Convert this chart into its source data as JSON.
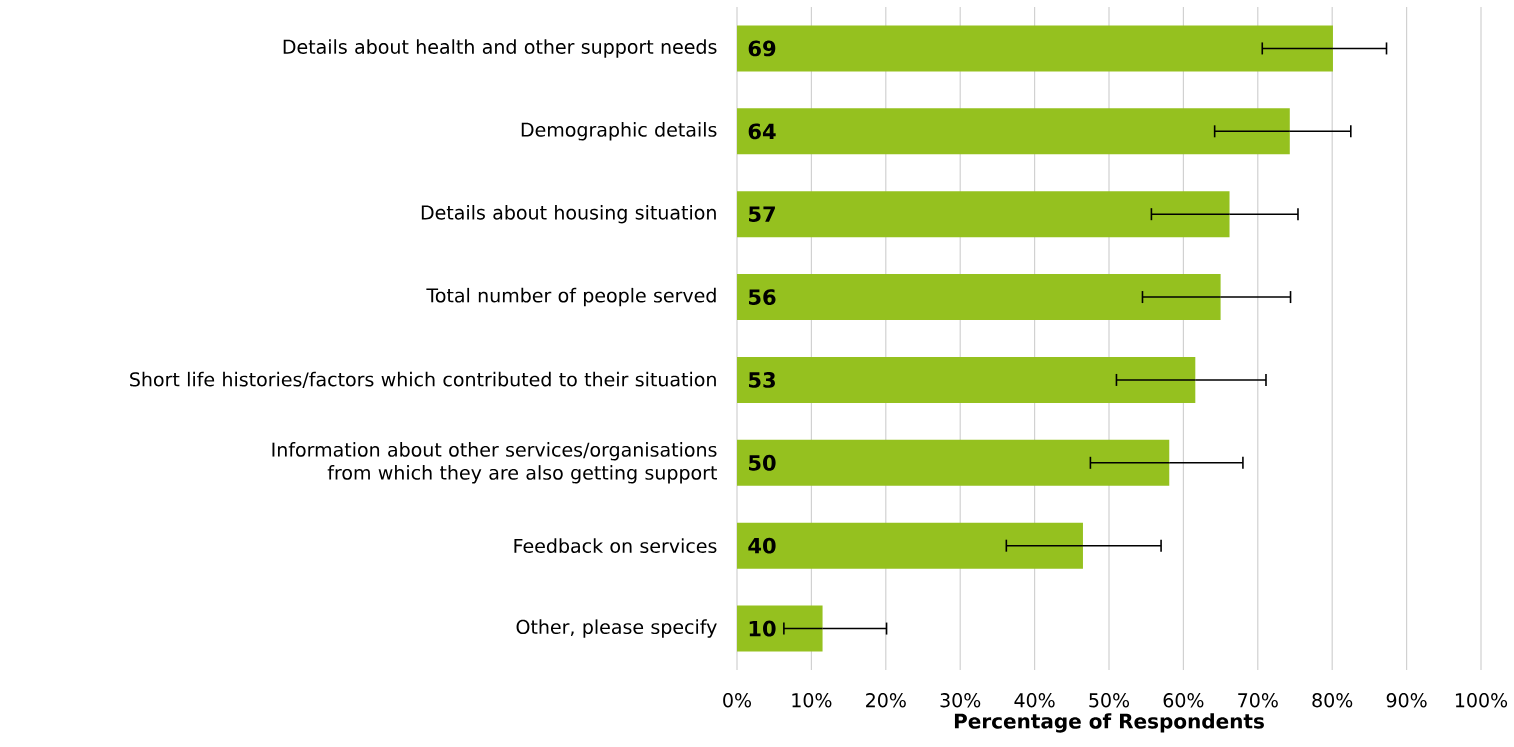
{
  "chart_data": {
    "type": "bar",
    "orientation": "horizontal",
    "xlabel": "Percentage of Respondents",
    "categories": [
      "Details about health and other support needs",
      "Demographic details",
      "Details about housing situation",
      "Total number of people served",
      "Short life histories/factors which contributed to their situation",
      "Information about other services/organisations from which they are also getting support",
      "Feedback on services",
      "Other, please specify"
    ],
    "values": [
      80.1,
      74.3,
      66.2,
      65.0,
      61.6,
      58.1,
      46.5,
      11.5
    ],
    "errors": [
      [
        70.6,
        87.3
      ],
      [
        64.2,
        82.5
      ],
      [
        55.7,
        75.4
      ],
      [
        54.5,
        74.4
      ],
      [
        51.0,
        71.1
      ],
      [
        47.5,
        68.0
      ],
      [
        36.2,
        57.0
      ],
      [
        6.3,
        20.1
      ]
    ],
    "annotations": [
      "69",
      "64",
      "57",
      "56",
      "53",
      "50",
      "40",
      "10"
    ],
    "color": "#95c11f",
    "xlim": [
      0,
      100
    ],
    "xticks": [
      {
        "value": 0,
        "label": "0%"
      },
      {
        "value": 10,
        "label": "10%"
      },
      {
        "value": 20,
        "label": "20%"
      },
      {
        "value": 30,
        "label": "30%"
      },
      {
        "value": 40,
        "label": "40%"
      },
      {
        "value": 50,
        "label": "50%"
      },
      {
        "value": 60,
        "label": "60%"
      },
      {
        "value": 70,
        "label": "70%"
      },
      {
        "value": 80,
        "label": "80%"
      },
      {
        "value": 90,
        "label": "90%"
      },
      {
        "value": 100,
        "label": "100%"
      }
    ],
    "grid": "x"
  }
}
